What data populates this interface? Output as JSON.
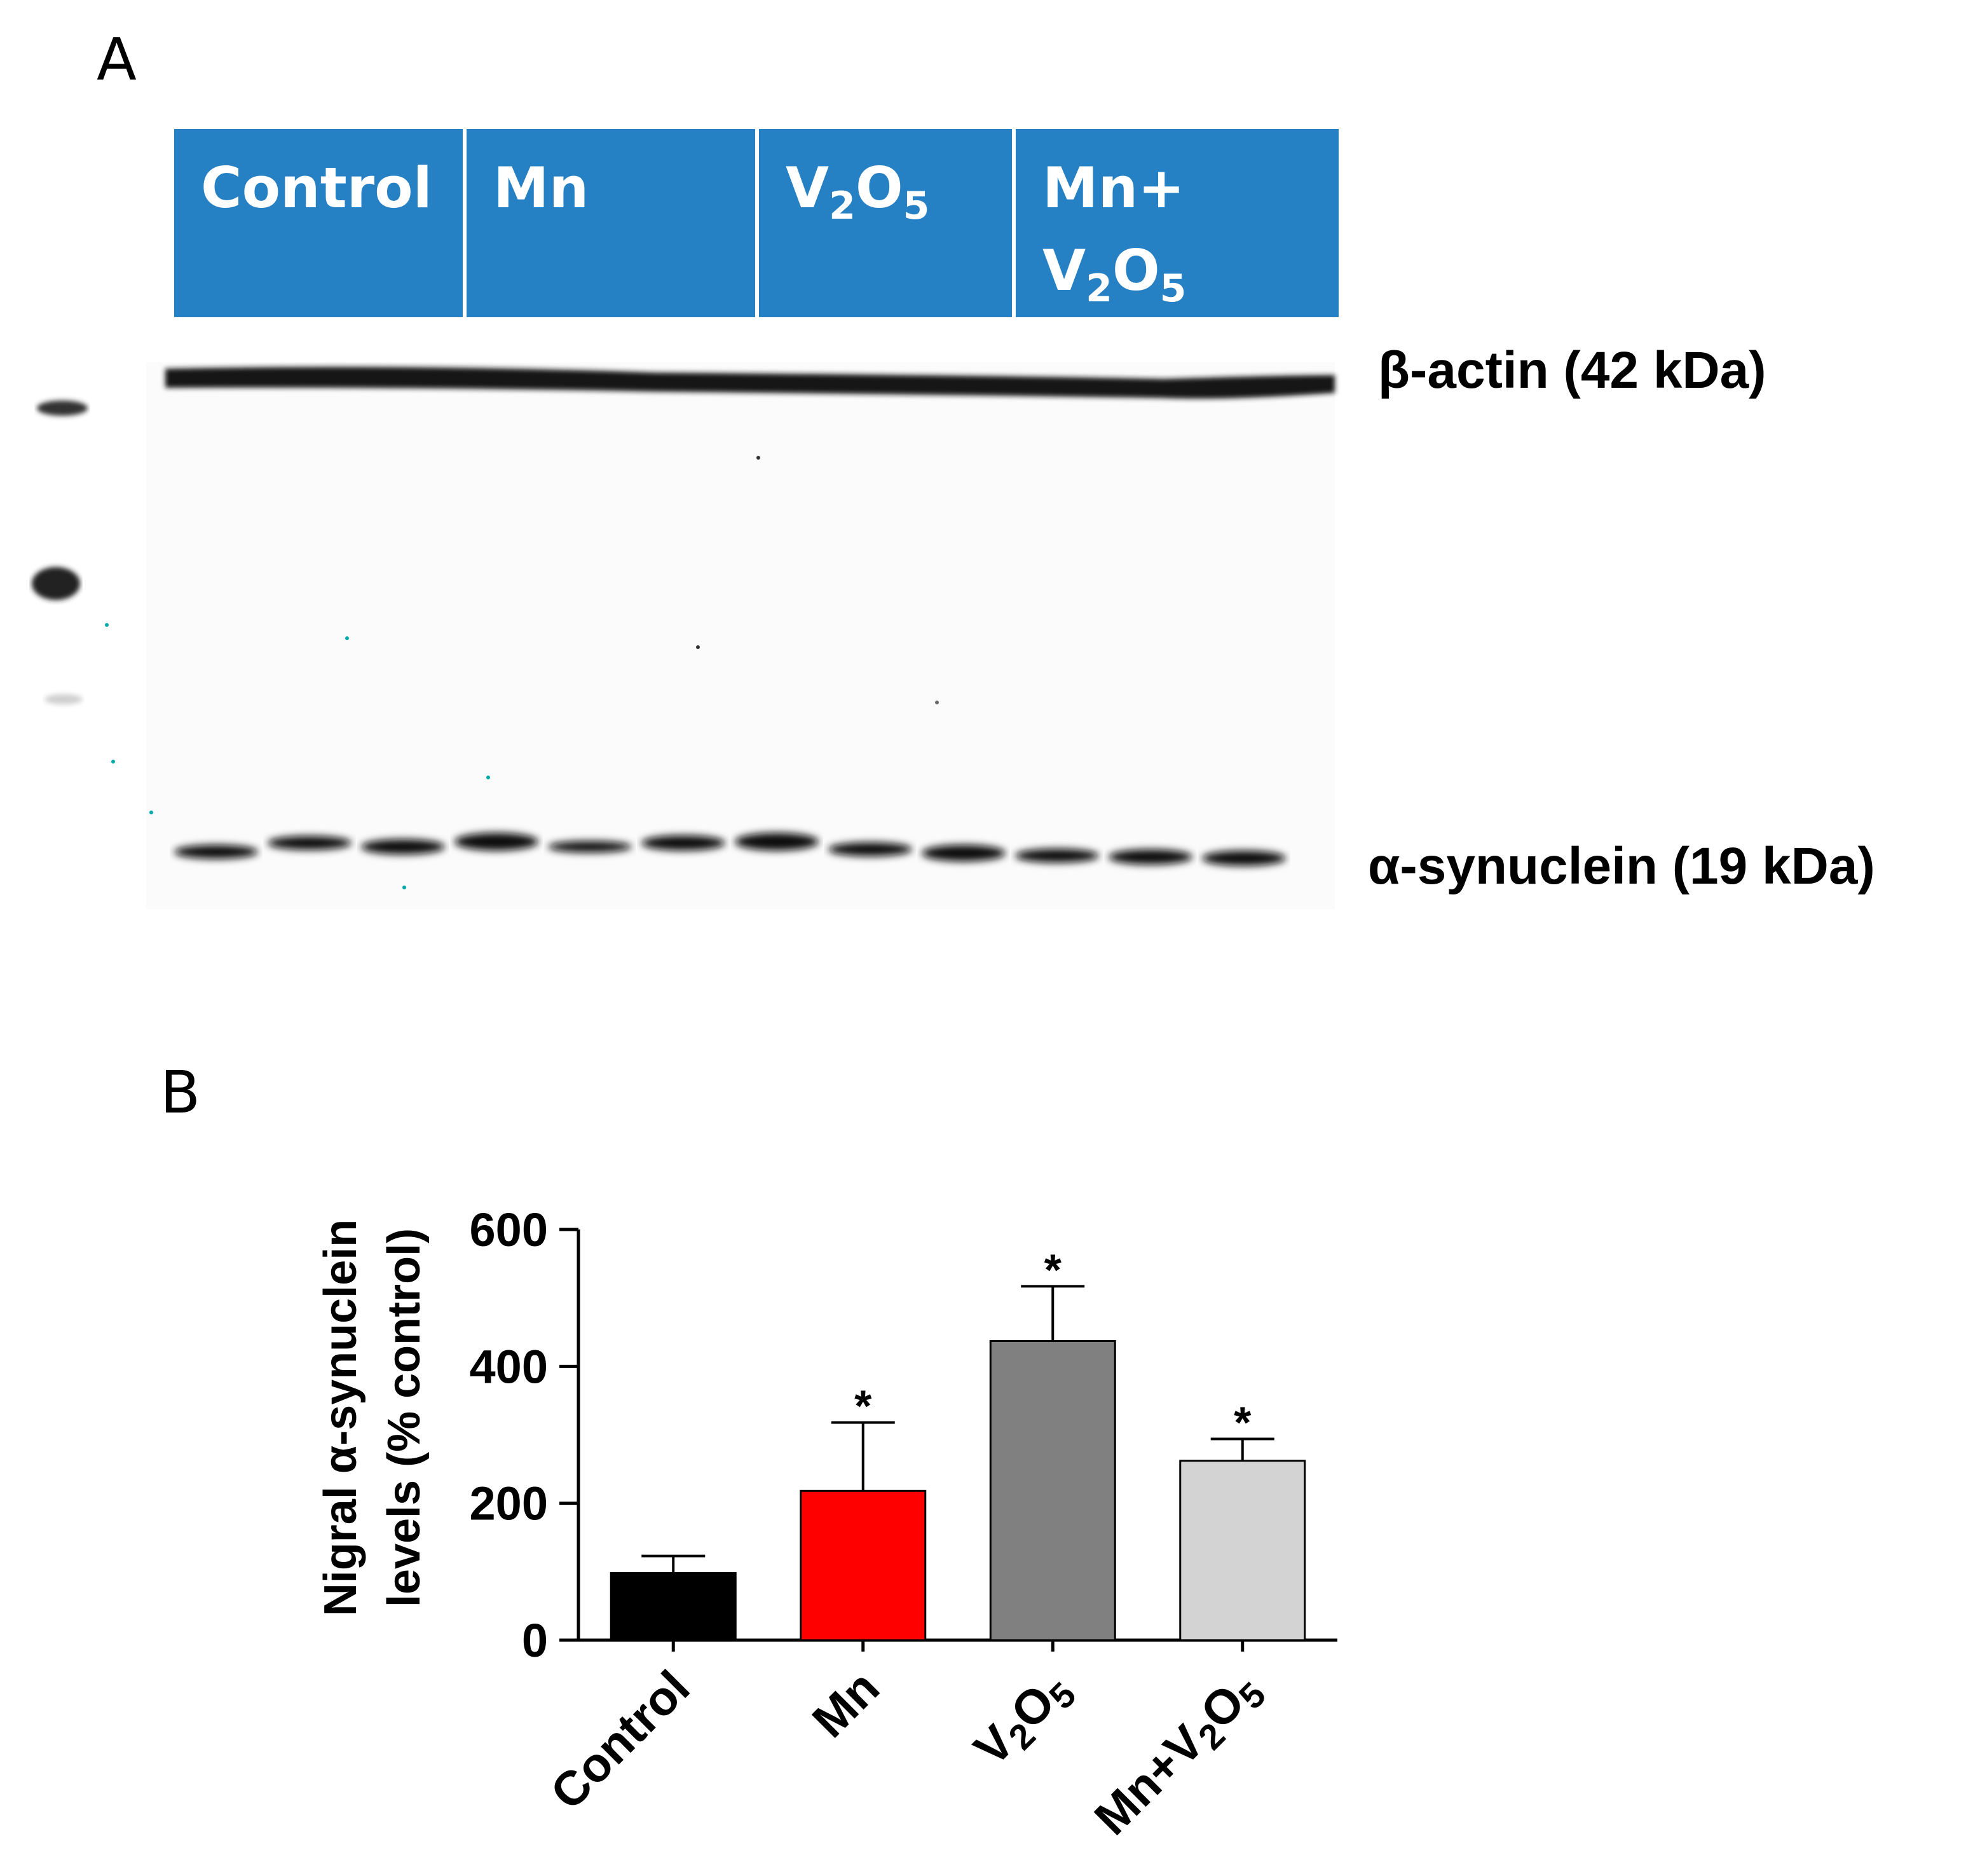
{
  "panel_a": {
    "letter": "A",
    "groups": [
      {
        "label": "Control",
        "sub": ""
      },
      {
        "label": "Mn",
        "sub": ""
      },
      {
        "label": "V2O5",
        "sub": "formula"
      },
      {
        "label": "Mn+ V2O5",
        "sub": "formula"
      }
    ],
    "group_text": {
      "control": "Control",
      "mn": "Mn",
      "v2o5_v": "V",
      "v2o5_2": "2",
      "v2o5_o": "O",
      "v2o5_5": "5",
      "mnv_line1": "Mn+",
      "mnv_v": "V",
      "mnv_2": "2",
      "mnv_o": "O",
      "mnv_5": "5"
    },
    "band_labels": {
      "actin": "β-actin (42 kDa)",
      "synuclein": "α-synuclein (19 kDa)"
    },
    "lane_count": 12,
    "colors": {
      "header": "#2581c4",
      "band": "#111111"
    }
  },
  "panel_b": {
    "letter": "B"
  },
  "chart_data": {
    "type": "bar",
    "categories": [
      "Control",
      "Mn",
      "V2O5",
      "Mn+V2O5"
    ],
    "category_parts": [
      [
        "Control"
      ],
      [
        "Mn"
      ],
      [
        "V",
        "2",
        "O",
        "5"
      ],
      [
        "Mn+V",
        "2",
        "O",
        "5"
      ]
    ],
    "values": [
      98,
      218,
      437,
      262
    ],
    "errors": [
      25,
      100,
      80,
      32
    ],
    "significant": [
      false,
      true,
      true,
      true
    ],
    "significance_marker": "*",
    "colors": [
      "#000000",
      "#ff0000",
      "#808080",
      "#d3d3d3"
    ],
    "ylabel_line1": "Nigral α-synuclein",
    "ylabel_line2": "levels (% control)",
    "ylim": [
      0,
      600
    ],
    "yticks": [
      0,
      200,
      400,
      600
    ],
    "ytick_labels": [
      "0",
      "200",
      "400",
      "600"
    ],
    "grid": false
  }
}
